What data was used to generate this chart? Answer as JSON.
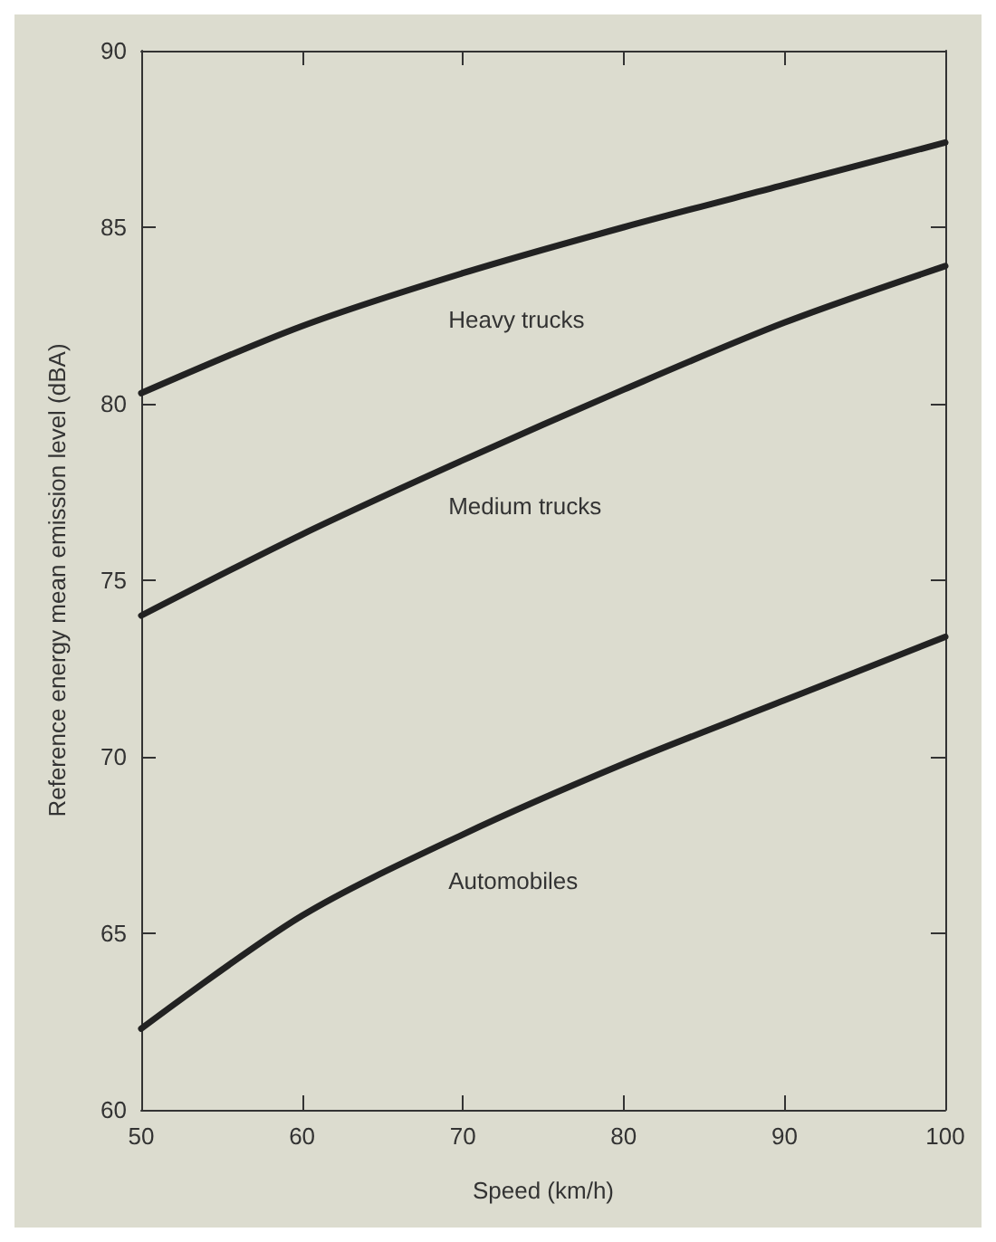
{
  "chart_data": {
    "type": "line",
    "xlabel": "Speed (km/h)",
    "ylabel": "Reference energy mean emission level (dBA)",
    "x": [
      50,
      60,
      70,
      80,
      90,
      100
    ],
    "series": [
      {
        "name": "Heavy trucks",
        "color": "#222222",
        "values": [
          80.3,
          82.2,
          83.7,
          85.0,
          86.2,
          87.4
        ]
      },
      {
        "name": "Medium trucks",
        "color": "#222222",
        "values": [
          74.0,
          76.3,
          78.4,
          80.4,
          82.3,
          83.9
        ]
      },
      {
        "name": "Automobiles",
        "color": "#222222",
        "values": [
          62.3,
          65.5,
          67.8,
          69.8,
          71.6,
          73.4
        ]
      }
    ],
    "xlim": [
      50,
      100
    ],
    "xticks": [
      50,
      60,
      70,
      80,
      90,
      100
    ],
    "ylim": [
      60,
      90
    ],
    "yticks": [
      60,
      65,
      70,
      75,
      80,
      85,
      90
    ],
    "grid": false,
    "legend": false,
    "marker": "none",
    "line_style": "solid"
  }
}
